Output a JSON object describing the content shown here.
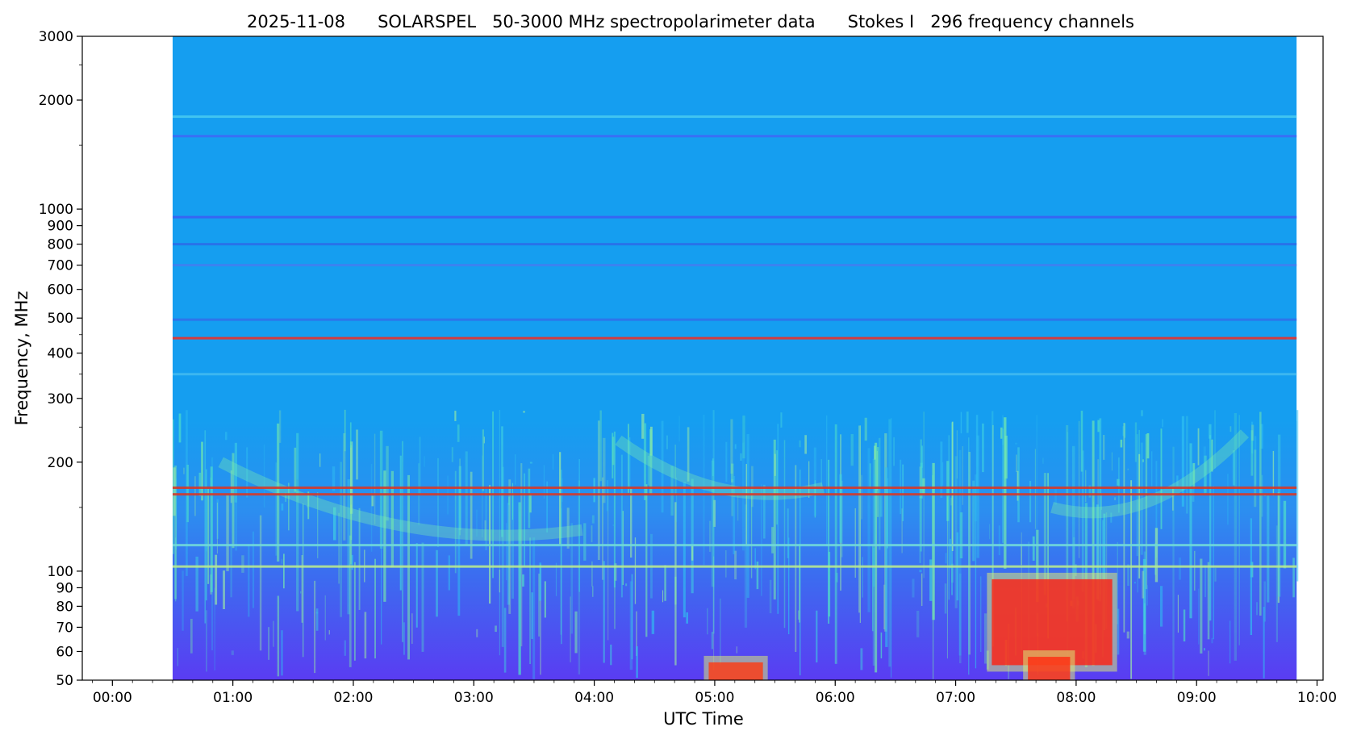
{
  "chart_data": {
    "type": "heatmap",
    "title": "2025-11-08      SOLARSPEL   50-3000 MHz spectropolarimeter data      Stokes I   296 frequency channels",
    "xlabel": "UTC Time",
    "ylabel": "Frequency, MHz",
    "x_range_hours": [
      -0.25,
      10.05
    ],
    "data_x_range_hours": [
      0.5,
      9.83
    ],
    "y_range_mhz": [
      50,
      3000
    ],
    "y_scale": "log",
    "grid": false,
    "colormap": "rainbow (blue-cyan-yellow-red)",
    "x_ticks": [
      {
        "hour": 0,
        "label": "00:00"
      },
      {
        "hour": 1,
        "label": "01:00"
      },
      {
        "hour": 2,
        "label": "02:00"
      },
      {
        "hour": 3,
        "label": "03:00"
      },
      {
        "hour": 4,
        "label": "04:00"
      },
      {
        "hour": 5,
        "label": "05:00"
      },
      {
        "hour": 6,
        "label": "06:00"
      },
      {
        "hour": 7,
        "label": "07:00"
      },
      {
        "hour": 8,
        "label": "08:00"
      },
      {
        "hour": 9,
        "label": "09:00"
      },
      {
        "hour": 10,
        "label": "10:00"
      }
    ],
    "y_ticks": [
      {
        "mhz": 50,
        "label": "50"
      },
      {
        "mhz": 60,
        "label": "60"
      },
      {
        "mhz": 70,
        "label": "70"
      },
      {
        "mhz": 80,
        "label": "80"
      },
      {
        "mhz": 90,
        "label": "90"
      },
      {
        "mhz": 100,
        "label": "100"
      },
      {
        "mhz": 200,
        "label": "200"
      },
      {
        "mhz": 300,
        "label": "300"
      },
      {
        "mhz": 400,
        "label": "400"
      },
      {
        "mhz": 500,
        "label": "500"
      },
      {
        "mhz": 600,
        "label": "600"
      },
      {
        "mhz": 700,
        "label": "700"
      },
      {
        "mhz": 800,
        "label": "800"
      },
      {
        "mhz": 900,
        "label": "900"
      },
      {
        "mhz": 1000,
        "label": "1000"
      },
      {
        "mhz": 2000,
        "label": "2000"
      },
      {
        "mhz": 3000,
        "label": "3000"
      }
    ],
    "y_minor_ticks_mhz": [
      150,
      250,
      350,
      450,
      1500,
      2500
    ],
    "features": {
      "background_color": "#159ef0",
      "low_freq_color": "#5a3cf2",
      "bands": [
        {
          "mhz": 1800,
          "color": "#46c8f0"
        },
        {
          "mhz": 1590,
          "color": "#3d6af5"
        },
        {
          "mhz": 950,
          "color": "#3a5ef2"
        },
        {
          "mhz": 800,
          "color": "#2a6ee8"
        },
        {
          "mhz": 700,
          "color": "#4080f0"
        },
        {
          "mhz": 495,
          "color": "#3070ea"
        },
        {
          "mhz": 440,
          "color": "#e8302a"
        },
        {
          "mhz": 350,
          "color": "#40b8f0"
        },
        {
          "mhz": 170,
          "color": "#d43a2a"
        },
        {
          "mhz": 163,
          "color": "#d43a2a"
        },
        {
          "mhz": 118,
          "color": "#70d8d8"
        },
        {
          "mhz": 103,
          "color": "#b8e890"
        }
      ],
      "bursts": [
        {
          "t_start": 7.3,
          "t_end": 8.3,
          "f_low": 55,
          "f_high": 95,
          "color": "#ff1e10"
        },
        {
          "t_start": 7.6,
          "t_end": 7.95,
          "f_low": 50,
          "f_high": 58,
          "color": "#ff2a10"
        },
        {
          "t_start": 4.95,
          "t_end": 5.4,
          "f_low": 50,
          "f_high": 56,
          "color": "#ff3a10"
        }
      ]
    }
  }
}
